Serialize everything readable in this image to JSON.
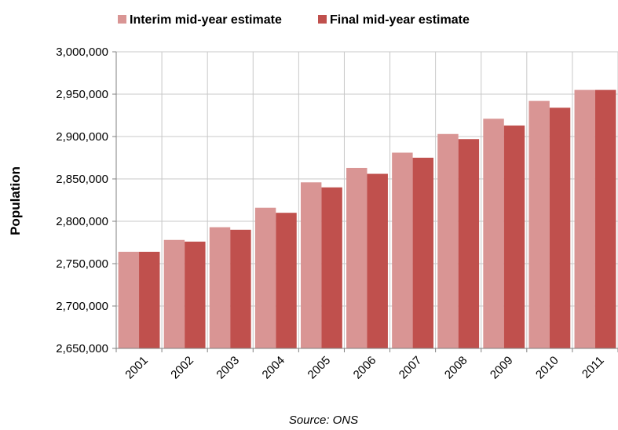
{
  "chart_data": {
    "type": "bar",
    "categories": [
      "2001",
      "2002",
      "2003",
      "2004",
      "2005",
      "2006",
      "2007",
      "2008",
      "2009",
      "2010",
      "2011"
    ],
    "series": [
      {
        "name": "Interim mid-year estimate",
        "color": "#d99594",
        "values": [
          2764000,
          2778000,
          2793000,
          2816000,
          2846000,
          2863000,
          2881000,
          2903000,
          2921000,
          2942000,
          2955000
        ]
      },
      {
        "name": "Final mid-year estimate",
        "color": "#c0504d",
        "values": [
          2764000,
          2776000,
          2790000,
          2810000,
          2840000,
          2856000,
          2875000,
          2897000,
          2913000,
          2934000,
          2955000
        ]
      }
    ],
    "ylabel": "Population",
    "ylim": [
      2650000,
      3000000
    ],
    "yticks": [
      2650000,
      2700000,
      2750000,
      2800000,
      2850000,
      2900000,
      2950000,
      3000000
    ],
    "ytick_labels": [
      "2,650,000",
      "2,700,000",
      "2,750,000",
      "2,800,000",
      "2,850,000",
      "2,900,000",
      "2,950,000",
      "3,000,000"
    ],
    "grid": true,
    "legend_position": "top"
  },
  "source_note": "Source: ONS"
}
